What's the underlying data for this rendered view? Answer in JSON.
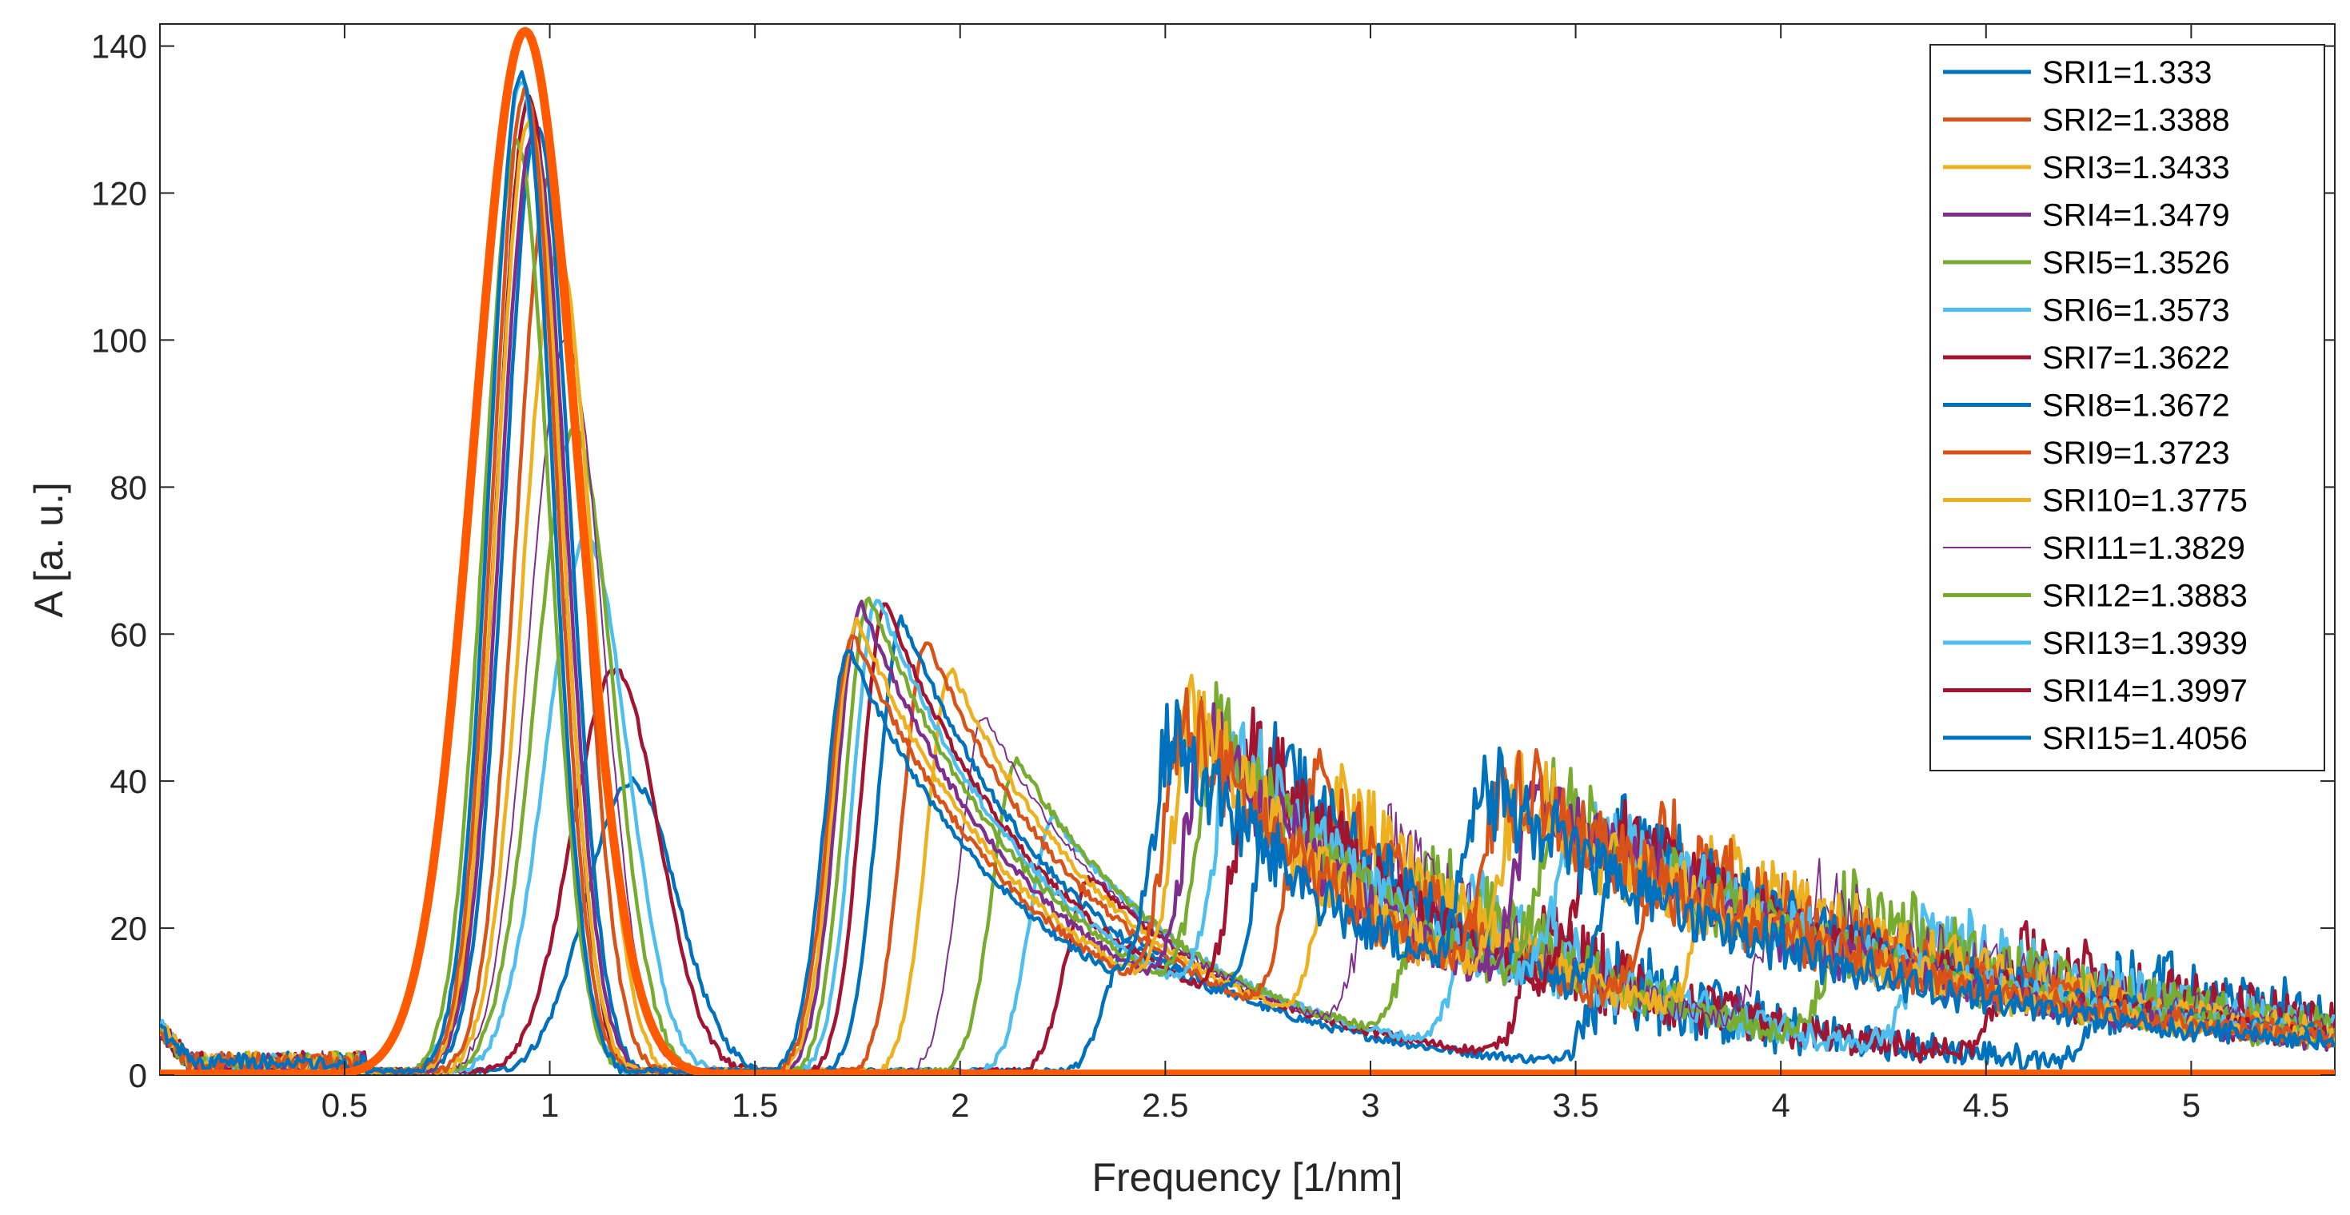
{
  "chart_data": {
    "type": "line",
    "title": "",
    "xlabel": "Frequency [1/nm]",
    "ylabel": "A [a. u.]",
    "xlim": [
      0.05,
      5.35
    ],
    "ylim": [
      0,
      143
    ],
    "xticks": [
      0.5,
      1,
      1.5,
      2,
      2.5,
      3,
      3.5,
      4,
      4.5,
      5
    ],
    "xtick_labels": [
      "0.5",
      "1",
      "1.5",
      "2",
      "2.5",
      "3",
      "3.5",
      "4",
      "4.5",
      "5"
    ],
    "yticks": [
      0,
      20,
      40,
      60,
      80,
      100,
      120,
      140
    ],
    "ytick_labels": [
      "0",
      "20",
      "40",
      "60",
      "80",
      "100",
      "120",
      "140"
    ],
    "grid": false,
    "legend_position": "top-right",
    "series": [
      {
        "name": "SRI1=1.333",
        "color": "#0072BD",
        "peak1": [
          0.93,
          136
        ],
        "peak2": [
          1.73,
          58
        ],
        "peak3": [
          2.52,
          36
        ],
        "peak4": [
          3.28,
          27
        ],
        "thin": false
      },
      {
        "name": "SRI2=1.3388",
        "color": "#D95319",
        "peak1": [
          0.94,
          134
        ],
        "peak2": [
          1.74,
          60
        ],
        "peak3": [
          2.55,
          38
        ],
        "peak4": [
          3.33,
          28
        ],
        "thin": false
      },
      {
        "name": "SRI3=1.3433",
        "color": "#EDB120",
        "peak1": [
          0.95,
          130
        ],
        "peak2": [
          1.75,
          62
        ],
        "peak3": [
          2.57,
          38
        ],
        "peak4": [
          3.37,
          27
        ],
        "thin": false
      },
      {
        "name": "SRI4=1.3479",
        "color": "#7E2F8E",
        "peak1": [
          0.96,
          128
        ],
        "peak2": [
          1.76,
          64
        ],
        "peak3": [
          2.6,
          37
        ],
        "peak4": [
          3.41,
          26
        ],
        "thin": false
      },
      {
        "name": "SRI5=1.3526",
        "color": "#77AC30",
        "peak1": [
          0.92,
          127
        ],
        "peak2": [
          1.78,
          65
        ],
        "peak3": [
          2.63,
          37
        ],
        "peak4": [
          3.46,
          25
        ],
        "thin": false
      },
      {
        "name": "SRI6=1.3573",
        "color": "#4DBEEE",
        "peak1": [
          0.93,
          135
        ],
        "peak2": [
          1.8,
          65
        ],
        "peak3": [
          2.67,
          36
        ],
        "peak4": [
          3.5,
          25
        ],
        "thin": false
      },
      {
        "name": "SRI7=1.3622",
        "color": "#A2142F",
        "peak1": [
          0.95,
          133
        ],
        "peak2": [
          1.82,
          64
        ],
        "peak3": [
          2.72,
          36
        ],
        "peak4": [
          3.55,
          24
        ],
        "thin": false
      },
      {
        "name": "SRI8=1.3672",
        "color": "#0072BD",
        "peak1": [
          0.97,
          129
        ],
        "peak2": [
          1.86,
          62
        ],
        "peak3": [
          2.78,
          34
        ],
        "peak4": [
          3.62,
          23
        ],
        "thin": false
      },
      {
        "name": "SRI9=1.3723",
        "color": "#D95319",
        "peak1": [
          1.0,
          122
        ],
        "peak2": [
          1.92,
          59
        ],
        "peak3": [
          2.85,
          32
        ],
        "peak4": [
          3.72,
          22
        ],
        "thin": false
      },
      {
        "name": "SRI10=1.3775",
        "color": "#EDB120",
        "peak1": [
          1.02,
          112
        ],
        "peak2": [
          1.98,
          55
        ],
        "peak3": [
          2.93,
          30
        ],
        "peak4": [
          3.85,
          21
        ],
        "thin": false
      },
      {
        "name": "SRI11=1.3829",
        "color": "#7E2F8E",
        "peak1": [
          1.04,
          100
        ],
        "peak2": [
          2.06,
          49
        ],
        "peak3": [
          3.03,
          26
        ],
        "peak4": [
          4.0,
          19
        ],
        "thin": true
      },
      {
        "name": "SRI12=1.3883",
        "color": "#77AC30",
        "peak1": [
          1.06,
          88
        ],
        "peak2": [
          2.14,
          43
        ],
        "peak3": [
          3.14,
          23
        ],
        "peak4": [
          4.17,
          17
        ],
        "thin": false
      },
      {
        "name": "SRI13=1.3939",
        "color": "#4DBEEE",
        "peak1": [
          1.09,
          73
        ],
        "peak2": [
          2.23,
          35
        ],
        "peak3": [
          3.26,
          19
        ],
        "peak4": [
          4.36,
          15
        ],
        "thin": false
      },
      {
        "name": "SRI14=1.3997",
        "color": "#A2142F",
        "peak1": [
          1.16,
          55
        ],
        "peak2": [
          2.32,
          27
        ],
        "peak3": [
          3.42,
          15
        ],
        "peak4": [
          4.58,
          13
        ],
        "thin": false
      },
      {
        "name": "SRI15=1.4056",
        "color": "#0072BD",
        "peak1": [
          1.2,
          40
        ],
        "peak2": [
          2.42,
          19
        ],
        "peak3": [
          3.58,
          12
        ],
        "peak4": [
          4.82,
          11
        ],
        "thin": false
      }
    ],
    "envelope": {
      "name": "",
      "color": "#FF5A00",
      "center": 0.94,
      "peak": 142,
      "sigma": 0.125,
      "baseline": 0
    }
  }
}
